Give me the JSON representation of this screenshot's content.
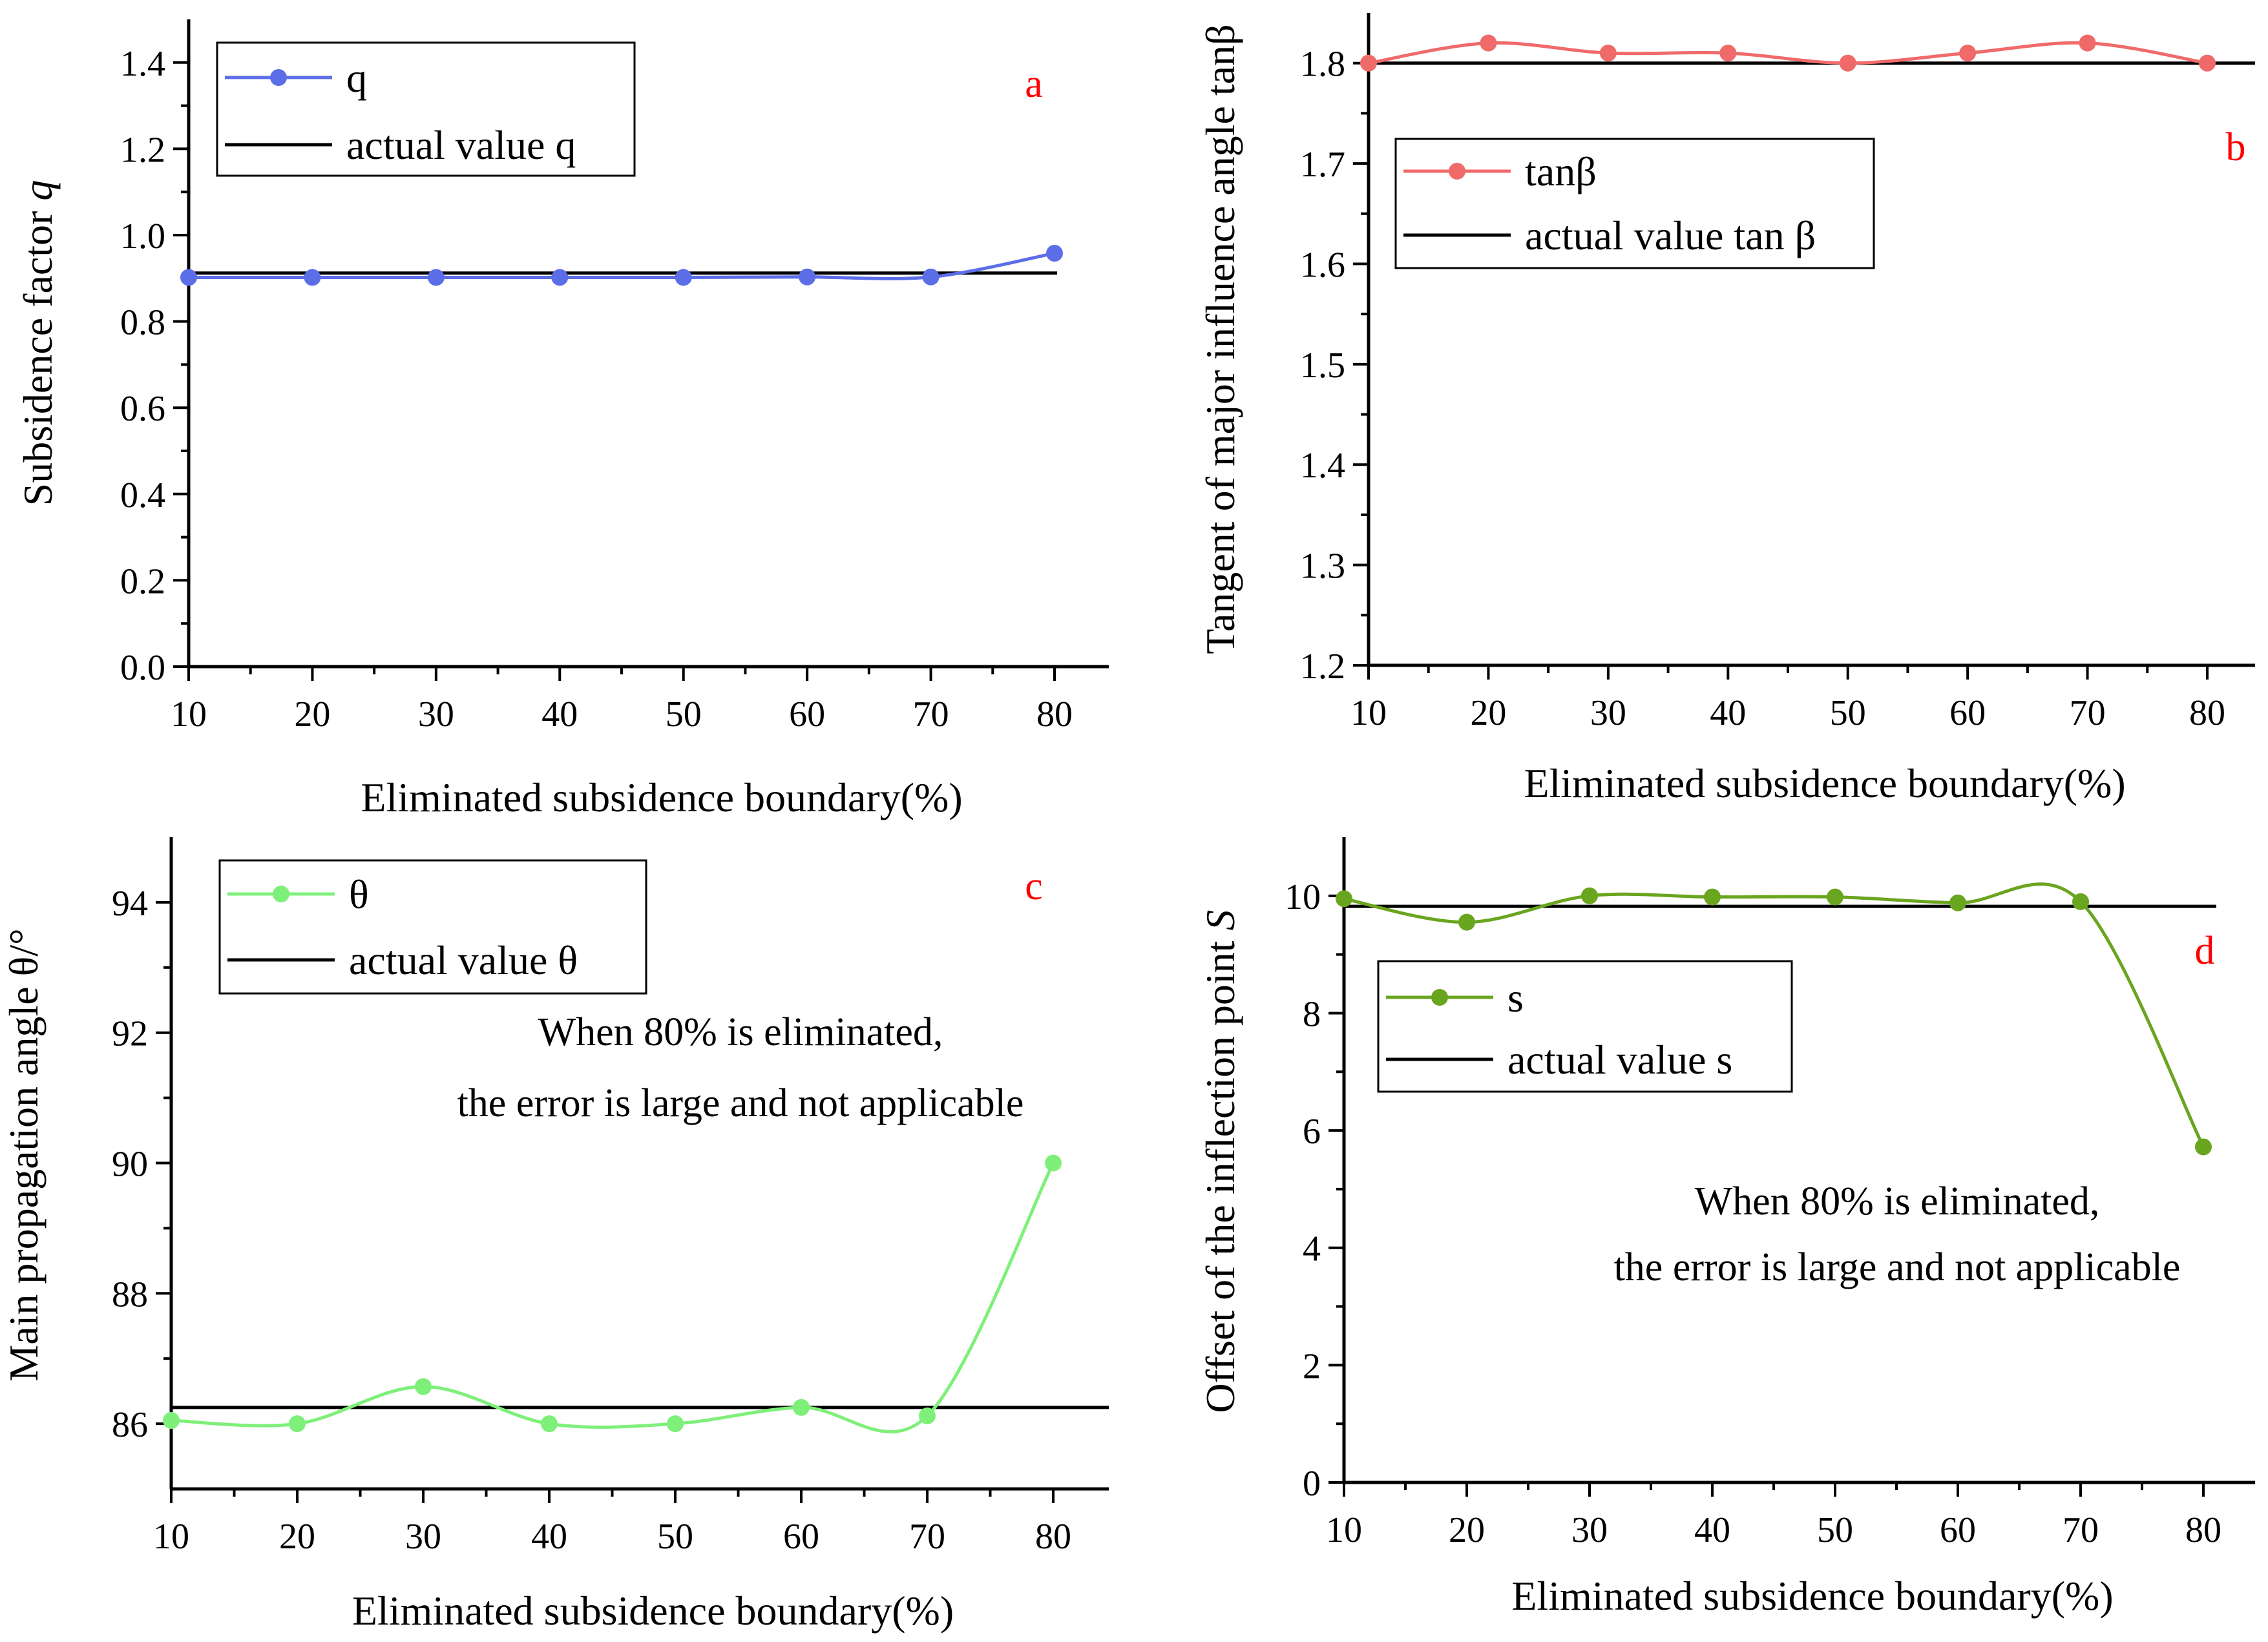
{
  "colors": {
    "q": "#5b6ee8",
    "tanb": "#f06a6a",
    "theta": "#7ef07a",
    "s": "#6aa51f",
    "actual": "#000000",
    "panel_label": "#ff0000"
  },
  "chart_data": [
    {
      "type": "line",
      "panel": "a",
      "xlabel": "Eliminated subsidence boundary(%)",
      "ylabel_main": "Subsidence factor ",
      "ylabel_var": "q",
      "x": [
        10,
        20,
        30,
        40,
        50,
        60,
        70,
        80
      ],
      "xlim": [
        10,
        85
      ],
      "ylim": [
        0.0,
        1.5
      ],
      "yticks": [
        "0.0",
        "0.2",
        "0.4",
        "0.6",
        "0.8",
        "1.0",
        "1.2",
        "1.4"
      ],
      "xticks": [
        "10",
        "20",
        "30",
        "40",
        "50",
        "60",
        "70",
        "80"
      ],
      "series": [
        {
          "name": "q",
          "values": [
            0.902,
            0.902,
            0.902,
            0.902,
            0.902,
            0.903,
            0.903,
            0.958
          ]
        }
      ],
      "actual": {
        "name": "actual value q",
        "value": 0.912
      },
      "legend": "top-left",
      "annotation": []
    },
    {
      "type": "line",
      "panel": "b",
      "xlabel": "Eliminated subsidence boundary(%)",
      "ylabel_main": "Tangent of major influence angle tanβ",
      "ylabel_var": "",
      "x": [
        10,
        20,
        30,
        40,
        50,
        60,
        70,
        80
      ],
      "xlim": [
        10,
        85
      ],
      "ylim": [
        1.2,
        1.85
      ],
      "yticks": [
        "1.2",
        "1.3",
        "1.4",
        "1.5",
        "1.6",
        "1.7",
        "1.8"
      ],
      "xticks": [
        "10",
        "20",
        "30",
        "40",
        "50",
        "60",
        "70",
        "80"
      ],
      "series": [
        {
          "name": "tanβ",
          "values": [
            1.8,
            1.82,
            1.81,
            1.81,
            1.8,
            1.81,
            1.82,
            1.8
          ]
        }
      ],
      "actual": {
        "name": "actual value tan β",
        "value": 1.8
      },
      "legend": "upper-left",
      "annotation": []
    },
    {
      "type": "line",
      "panel": "c",
      "xlabel": "Eliminated subsidence boundary(%)",
      "ylabel_main": "Main propagation angle θ/°",
      "ylabel_var": "",
      "x": [
        10,
        20,
        30,
        40,
        50,
        60,
        70,
        80
      ],
      "xlim": [
        10,
        84
      ],
      "ylim": [
        85,
        95
      ],
      "yticks": [
        "86",
        "88",
        "90",
        "92",
        "94"
      ],
      "xticks": [
        "10",
        "20",
        "30",
        "40",
        "50",
        "60",
        "70",
        "80"
      ],
      "series": [
        {
          "name": "θ",
          "values": [
            86.05,
            86.0,
            86.57,
            86.0,
            86.0,
            86.25,
            86.12,
            90.0
          ]
        }
      ],
      "actual": {
        "name": "actual value θ",
        "value": 86.25
      },
      "legend": "top-left",
      "annotation": [
        "When 80% is eliminated,",
        "the error is large and not applicable"
      ]
    },
    {
      "type": "line",
      "panel": "d",
      "xlabel": "Eliminated subsidence boundary(%)",
      "ylabel_main": "Offset of the inflection point ",
      "ylabel_var": "S",
      "x": [
        10,
        20,
        30,
        40,
        50,
        60,
        70,
        80
      ],
      "xlim": [
        10,
        85
      ],
      "ylim": [
        0,
        11
      ],
      "yticks": [
        "0",
        "2",
        "4",
        "6",
        "8",
        "10"
      ],
      "xticks": [
        "10",
        "20",
        "30",
        "40",
        "50",
        "60",
        "70",
        "80"
      ],
      "series": [
        {
          "name": "s",
          "values": [
            9.95,
            9.55,
            10.0,
            9.98,
            9.98,
            9.88,
            9.9,
            5.72
          ]
        }
      ],
      "actual": {
        "name": "actual value s",
        "value": 9.82
      },
      "legend": "middle-left",
      "annotation": [
        "When 80% is eliminated,",
        "the error is large and not applicable"
      ]
    }
  ]
}
